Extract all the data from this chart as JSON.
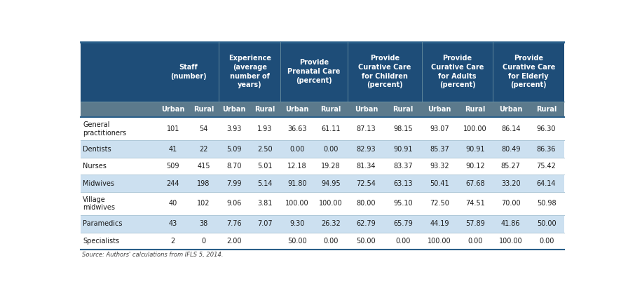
{
  "header_bg": "#1e4d78",
  "subheader_bg": "#5c7a8c",
  "row_colors": [
    "#ffffff",
    "#cce0f0",
    "#ffffff",
    "#cce0f0",
    "#ffffff",
    "#cce0f0",
    "#ffffff"
  ],
  "col_groups": [
    {
      "label": "",
      "cols": [
        0
      ]
    },
    {
      "label": "Staff\n(number)",
      "cols": [
        1,
        2
      ]
    },
    {
      "label": "Experience\n(average\nnumber of\nyears)",
      "cols": [
        3,
        4
      ]
    },
    {
      "label": "Provide\nPrenatal Care\n(percent)",
      "cols": [
        5,
        6
      ]
    },
    {
      "label": "Provide\nCurative Care\nfor Children\n(percent)",
      "cols": [
        7,
        8
      ]
    },
    {
      "label": "Provide\nCurative Care\nfor Adults\n(percent)",
      "cols": [
        9,
        10
      ]
    },
    {
      "label": "Provide\nCurative Care\nfor Elderly\n(percent)",
      "cols": [
        11,
        12
      ]
    }
  ],
  "sub_headers": [
    "Urban",
    "Rural",
    "Urban",
    "Rural",
    "Urban",
    "Rural",
    "Urban",
    "Rural",
    "Urban",
    "Rural",
    "Urban",
    "Rural"
  ],
  "rows": [
    {
      "label": "General\npractitioners",
      "values": [
        "101",
        "54",
        "3.93",
        "1.93",
        "36.63",
        "61.11",
        "87.13",
        "98.15",
        "93.07",
        "100.00",
        "86.14",
        "96.30"
      ]
    },
    {
      "label": "Dentists",
      "values": [
        "41",
        "22",
        "5.09",
        "2.50",
        "0.00",
        "0.00",
        "82.93",
        "90.91",
        "85.37",
        "90.91",
        "80.49",
        "86.36"
      ]
    },
    {
      "label": "Nurses",
      "values": [
        "509",
        "415",
        "8.70",
        "5.01",
        "12.18",
        "19.28",
        "81.34",
        "83.37",
        "93.32",
        "90.12",
        "85.27",
        "75.42"
      ]
    },
    {
      "label": "Midwives",
      "values": [
        "244",
        "198",
        "7.99",
        "5.14",
        "91.80",
        "94.95",
        "72.54",
        "63.13",
        "50.41",
        "67.68",
        "33.20",
        "64.14"
      ]
    },
    {
      "label": "Village\nmidwives",
      "values": [
        "40",
        "102",
        "9.06",
        "3.81",
        "100.00",
        "100.00",
        "80.00",
        "95.10",
        "72.50",
        "74.51",
        "70.00",
        "50.98"
      ]
    },
    {
      "label": "Paramedics",
      "values": [
        "43",
        "38",
        "7.76",
        "7.07",
        "9.30",
        "26.32",
        "62.79",
        "65.79",
        "44.19",
        "57.89",
        "41.86",
        "50.00"
      ]
    },
    {
      "label": "Specialists",
      "values": [
        "2",
        "0",
        "2.00",
        "",
        "50.00",
        "0.00",
        "50.00",
        "0.00",
        "100.00",
        "0.00",
        "100.00",
        "0.00"
      ]
    }
  ],
  "footnote": "Source: Authors' calculations from IFLS 5, 2014.",
  "header_text_color": "#ffffff",
  "body_text_color": "#1a1a1a",
  "col_widths_rel": [
    1.55,
    0.62,
    0.62,
    0.62,
    0.62,
    0.68,
    0.68,
    0.75,
    0.75,
    0.72,
    0.72,
    0.72,
    0.72
  ],
  "figsize": [
    8.96,
    4.28
  ],
  "dpi": 100
}
